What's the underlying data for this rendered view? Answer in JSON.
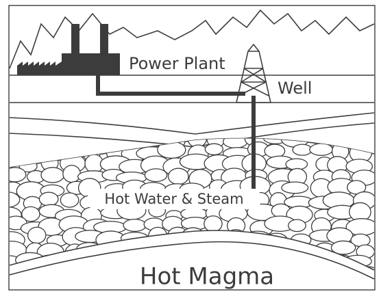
{
  "labels": {
    "power_plant": "Power Plant",
    "well": "Well",
    "hot_water_steam": "Hot Water & Steam",
    "hot_magma": "Hot Magma"
  }
}
